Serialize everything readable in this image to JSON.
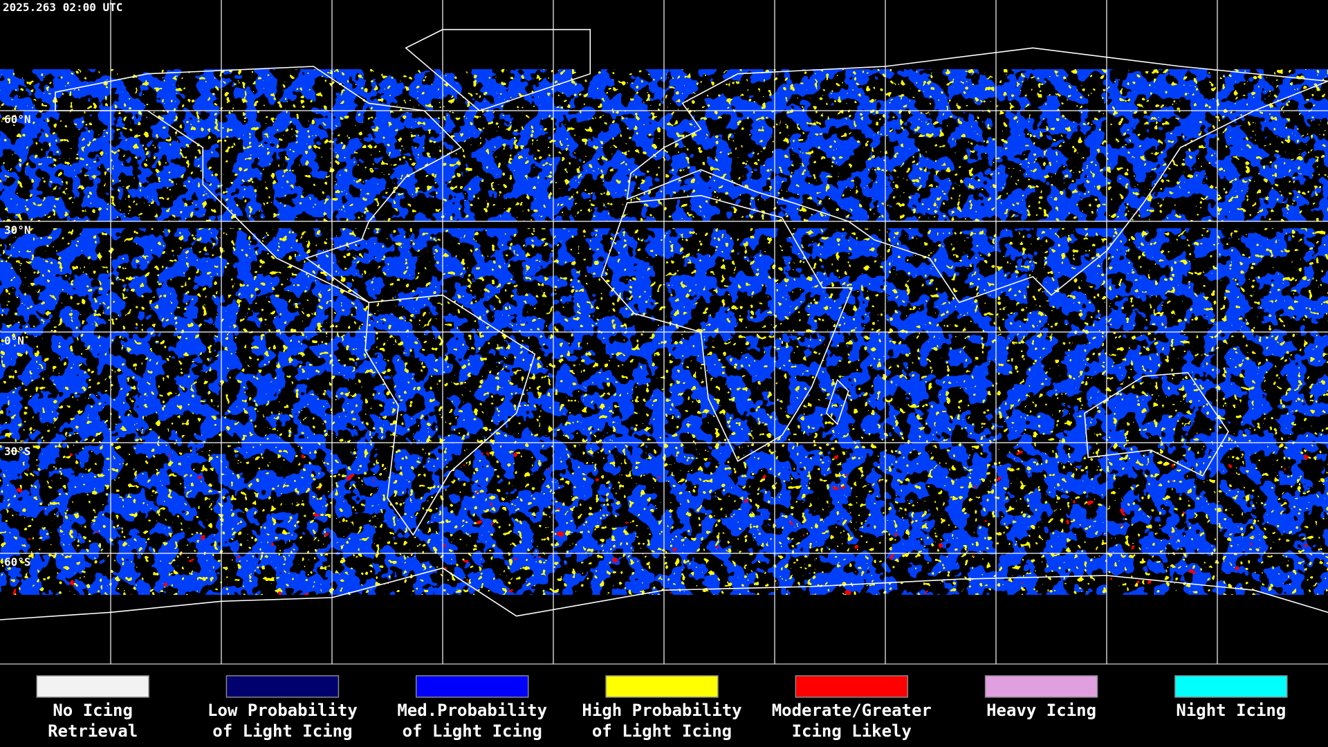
{
  "header": {
    "timestamp": "2025.263 02:00 UTC"
  },
  "lat_labels": [
    "60°N",
    "30°N",
    "0°N",
    "30°S",
    "60°S"
  ],
  "legend": [
    {
      "lines": [
        "No Icing",
        "Retrieval"
      ],
      "color": "#f2f2f2"
    },
    {
      "lines": [
        "Low Probability",
        "of Light Icing"
      ],
      "color": "#00006e"
    },
    {
      "lines": [
        "Med.Probability",
        "of Light Icing"
      ],
      "color": "#0000ff"
    },
    {
      "lines": [
        "High Probability",
        "of Light Icing"
      ],
      "color": "#ffff00"
    },
    {
      "lines": [
        "Moderate/Greater",
        "Icing Likely"
      ],
      "color": "#ff0000"
    },
    {
      "lines": [
        "Heavy Icing"
      ],
      "color": "#e0a0e0"
    },
    {
      "lines": [
        "Night Icing"
      ],
      "color": "#00ffff"
    }
  ]
}
